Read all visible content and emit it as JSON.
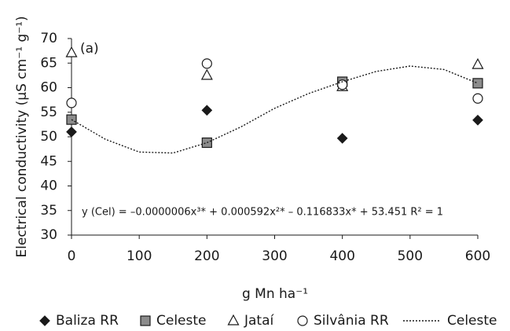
{
  "chart_data": {
    "type": "scatter",
    "annotation": "(a)",
    "equation": "y (Cel) = –0.0000006x³* + 0.000592x²* – 0.116833x* + 53.451   R² = 1",
    "xlabel": "g Mn ha⁻¹",
    "ylabel": "Electrical conductivity (µS cm⁻¹ g⁻¹)",
    "xlim": [
      0,
      600
    ],
    "xticks": [
      0,
      100,
      200,
      300,
      400,
      500,
      600
    ],
    "ylim": [
      30,
      70
    ],
    "yticks": [
      30,
      35,
      40,
      45,
      50,
      55,
      60,
      65,
      70
    ],
    "grid": false,
    "legend": "bottom",
    "series": [
      {
        "name": "Baliza RR",
        "marker": "diamond",
        "color": "#1a1a1a",
        "x": [
          0,
          200,
          400,
          600
        ],
        "values": [
          51,
          55.4,
          49.7,
          53.4
        ]
      },
      {
        "name": "Celeste",
        "marker": "square",
        "color": "#8c8c8c",
        "x": [
          0,
          200,
          400,
          600
        ],
        "values": [
          53.5,
          48.8,
          61.2,
          60.9
        ]
      },
      {
        "name": "Jataí",
        "marker": "triangle",
        "color": "#ffffff",
        "x": [
          0,
          200,
          400,
          600
        ],
        "values": [
          67.1,
          62.5,
          60.2,
          64.7
        ]
      },
      {
        "name": "Silvânia RR",
        "marker": "circle",
        "color": "#ffffff",
        "x": [
          0,
          200,
          400,
          600
        ],
        "values": [
          56.9,
          64.9,
          60.6,
          57.8
        ]
      },
      {
        "name": "Celeste",
        "marker": "dotted-line",
        "color": "#1a1a1a",
        "x": [
          0,
          50,
          100,
          150,
          200,
          250,
          300,
          350,
          400,
          450,
          500,
          550,
          600
        ],
        "values": [
          53.5,
          49.5,
          46.9,
          46.7,
          48.8,
          52.0,
          55.8,
          58.8,
          61.2,
          63.3,
          64.4,
          63.7,
          60.9
        ]
      }
    ]
  }
}
